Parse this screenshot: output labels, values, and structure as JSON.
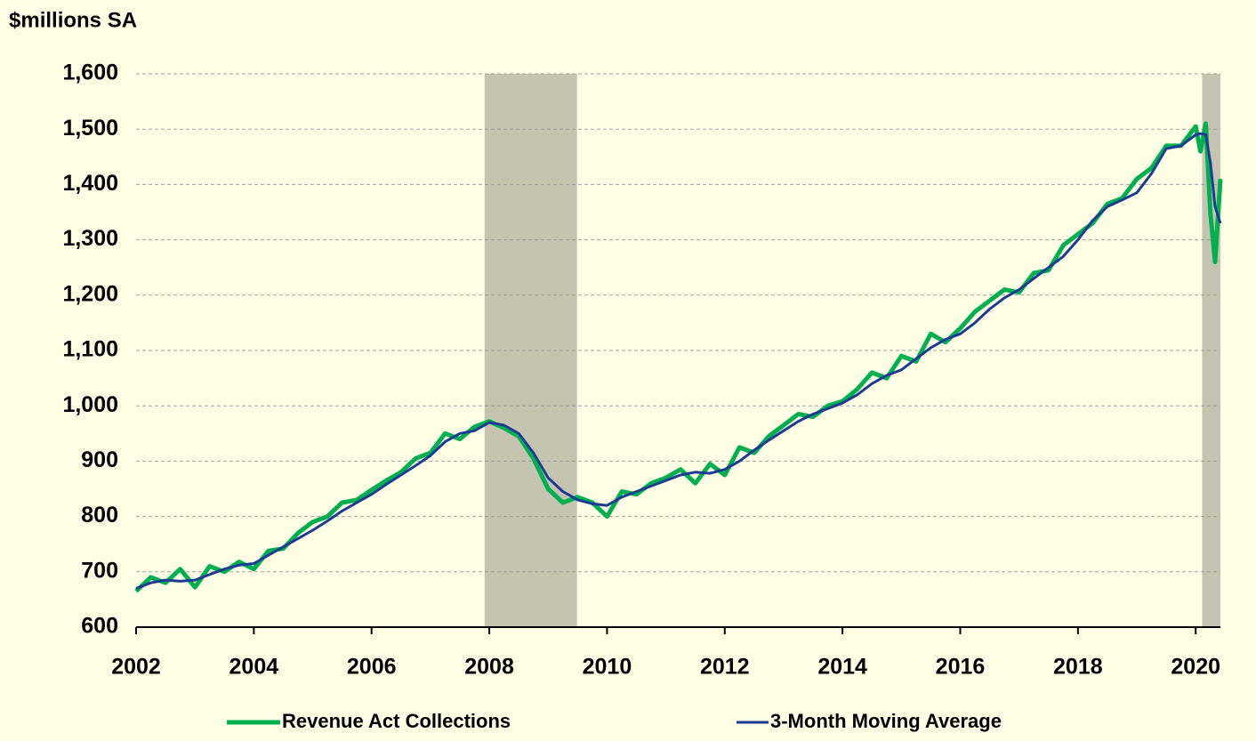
{
  "chart_data": {
    "type": "line",
    "y_axis_label": "$millions SA",
    "x": [
      2002,
      2002.25,
      2002.5,
      2002.75,
      2003,
      2003.25,
      2003.5,
      2003.75,
      2004,
      2004.25,
      2004.5,
      2004.75,
      2005,
      2005.25,
      2005.5,
      2005.75,
      2006,
      2006.25,
      2006.5,
      2006.75,
      2007,
      2007.25,
      2007.5,
      2007.75,
      2008,
      2008.25,
      2008.5,
      2008.75,
      2009,
      2009.25,
      2009.5,
      2009.75,
      2010,
      2010.25,
      2010.5,
      2010.75,
      2011,
      2011.25,
      2011.5,
      2011.75,
      2012,
      2012.25,
      2012.5,
      2012.75,
      2013,
      2013.25,
      2013.5,
      2013.75,
      2014,
      2014.25,
      2014.5,
      2014.75,
      2015,
      2015.25,
      2015.5,
      2015.75,
      2016,
      2016.25,
      2016.5,
      2016.75,
      2017,
      2017.25,
      2017.5,
      2017.75,
      2018,
      2018.25,
      2018.5,
      2018.75,
      2019,
      2019.25,
      2019.5,
      2019.75,
      2020,
      2020.08,
      2020.17,
      2020.25,
      2020.33,
      2020.42
    ],
    "series": [
      {
        "name": "Revenue Act Collections",
        "color": "#00b050",
        "width": 5,
        "values": [
          665,
          690,
          680,
          705,
          672,
          710,
          700,
          718,
          705,
          738,
          742,
          770,
          790,
          800,
          825,
          830,
          848,
          865,
          880,
          905,
          915,
          950,
          940,
          962,
          972,
          960,
          945,
          905,
          850,
          825,
          835,
          825,
          800,
          845,
          840,
          860,
          870,
          885,
          860,
          895,
          875,
          925,
          915,
          945,
          965,
          985,
          980,
          1000,
          1008,
          1030,
          1060,
          1050,
          1090,
          1080,
          1130,
          1115,
          1140,
          1170,
          1190,
          1210,
          1205,
          1240,
          1245,
          1290,
          1310,
          1330,
          1365,
          1375,
          1410,
          1430,
          1470,
          1470,
          1505,
          1460,
          1510,
          1350,
          1260,
          1410
        ]
      },
      {
        "name": "3-Month Moving Average",
        "color": "#1f3a93",
        "width": 3,
        "values": [
          670,
          680,
          685,
          683,
          685,
          695,
          705,
          712,
          715,
          730,
          745,
          760,
          775,
          792,
          810,
          825,
          840,
          858,
          875,
          892,
          910,
          935,
          950,
          955,
          970,
          965,
          950,
          915,
          870,
          845,
          830,
          823,
          820,
          835,
          845,
          855,
          865,
          875,
          880,
          878,
          885,
          900,
          920,
          938,
          955,
          972,
          985,
          995,
          1005,
          1020,
          1040,
          1055,
          1065,
          1085,
          1105,
          1120,
          1130,
          1150,
          1175,
          1195,
          1210,
          1230,
          1250,
          1270,
          1300,
          1335,
          1360,
          1372,
          1385,
          1420,
          1465,
          1470,
          1490,
          1492,
          1490,
          1440,
          1360,
          1330
        ]
      }
    ],
    "shaded_periods": [
      [
        2007.92,
        2009.49
      ],
      [
        2020.11,
        2020.42
      ]
    ],
    "shade_color": "#c4c4b0",
    "xlim": [
      2002,
      2020.42
    ],
    "xticks": [
      2002,
      2004,
      2006,
      2008,
      2010,
      2012,
      2014,
      2016,
      2018,
      2020
    ],
    "ylim": [
      600,
      1600
    ],
    "yticks": [
      600,
      700,
      800,
      900,
      {
        "value": 1000,
        "label": "1,000"
      },
      {
        "value": 1100,
        "label": "1,100"
      },
      {
        "value": 1200,
        "label": "1,200"
      },
      {
        "value": 1300,
        "label": "1,300"
      },
      {
        "value": 1400,
        "label": "1,400"
      },
      {
        "value": 1500,
        "label": "1,500"
      },
      {
        "value": 1600,
        "label": "1,600"
      }
    ],
    "grid": true,
    "legend": "bottom"
  }
}
